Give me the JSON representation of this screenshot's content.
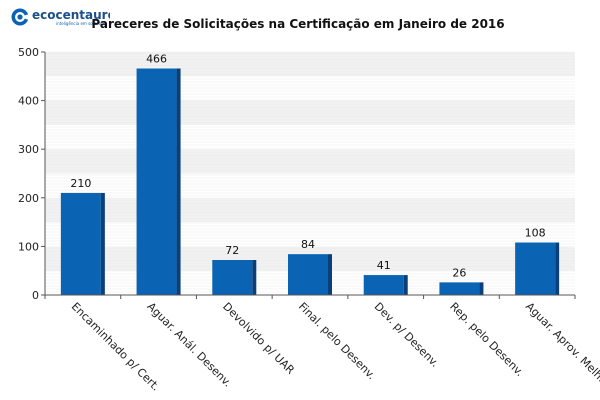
{
  "logo": {
    "name": "ecocentauro",
    "tagline": "inteligência em software"
  },
  "colors": {
    "bar_face": "#0a63b3",
    "bar_side": "#0a3f7a",
    "grid_band": "#eeeeee",
    "axis": "#555555",
    "logo_blue": "#0a63b3",
    "logo_dark": "#1a4f8a"
  },
  "chart_data": {
    "type": "bar",
    "title": "Pareceres de Solicitações na Certificação em Janeiro de 2016",
    "xlabel": "",
    "ylabel": "",
    "ylim": [
      0,
      500
    ],
    "yticks": [
      0,
      100,
      200,
      300,
      400,
      500
    ],
    "grid": true,
    "categories": [
      "Encaminhado p/ Cert.",
      "Aguar. Anál. Desenv.",
      "Devolvido p/ UAR",
      "Final. pelo Desenv.",
      "Dev. p/ Desenv.",
      "Rep. pelo Desenv.",
      "Aguar. Aprov. Melh."
    ],
    "values": [
      210,
      466,
      72,
      84,
      41,
      26,
      108
    ],
    "data_labels": [
      "210",
      "466",
      "72",
      "84",
      "41",
      "26",
      "108"
    ]
  }
}
